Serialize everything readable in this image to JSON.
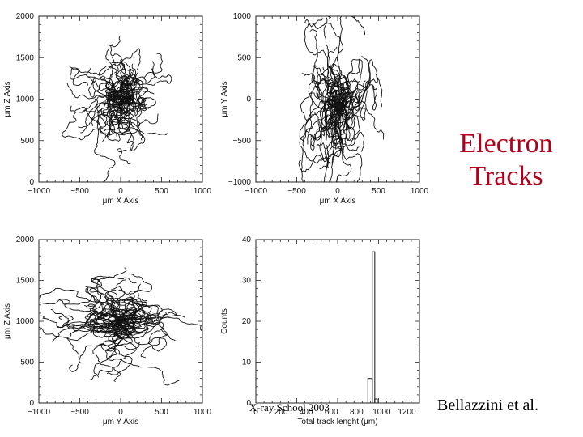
{
  "title": {
    "line1": "Electron",
    "line2": "Tracks"
  },
  "footer": {
    "left": "X-ray School 2003",
    "right": "Bellazzini et al."
  },
  "colors": {
    "title": "#b3001a",
    "ink": "#111111"
  },
  "chart_data": [
    {
      "type": "scatter",
      "name": "tracks-xz",
      "xlabel": "μm X Axis",
      "ylabel": "μm Z Axis",
      "xlim": [
        -1000,
        1000
      ],
      "ylim": [
        0,
        2000
      ],
      "xticks": [
        "−1000",
        "−500",
        "0",
        "500",
        "1000"
      ],
      "yticks": [
        "0",
        "500",
        "1000",
        "1500",
        "2000"
      ],
      "xtick_values": [
        -1000,
        -500,
        0,
        500,
        1000
      ],
      "ytick_values": [
        0,
        500,
        1000,
        1500,
        2000
      ],
      "cluster": {
        "cx": 0,
        "cy": 1000,
        "spread_x": 420,
        "spread_y": 420
      },
      "track_count": 60
    },
    {
      "type": "scatter",
      "name": "tracks-xy",
      "xlabel": "μm X Axis",
      "ylabel": "μm Y Axis",
      "xlim": [
        -1000,
        1000
      ],
      "ylim": [
        -1000,
        1000
      ],
      "xticks": [
        "−1000",
        "−500",
        "0",
        "500",
        "1000"
      ],
      "yticks": [
        "−1000",
        "−500",
        "0",
        "500",
        "1000"
      ],
      "xtick_values": [
        -1000,
        -500,
        0,
        500,
        1000
      ],
      "ytick_values": [
        -1000,
        -500,
        0,
        500,
        1000
      ],
      "cluster": {
        "cx": 0,
        "cy": -100,
        "spread_x": 380,
        "spread_y": 700
      },
      "track_count": 60
    },
    {
      "type": "scatter",
      "name": "tracks-yz",
      "xlabel": "μm Y Axis",
      "ylabel": "μm Z Axis",
      "xlim": [
        -1000,
        1000
      ],
      "ylim": [
        0,
        2000
      ],
      "xticks": [
        "−1000",
        "−500",
        "0",
        "500",
        "1000"
      ],
      "yticks": [
        "0",
        "500",
        "1000",
        "1500",
        "2000"
      ],
      "xtick_values": [
        -1000,
        -500,
        0,
        500,
        1000
      ],
      "ytick_values": [
        0,
        500,
        1000,
        1500,
        2000
      ],
      "cluster": {
        "cx": 0,
        "cy": 1000,
        "spread_x": 600,
        "spread_y": 380
      },
      "track_count": 60
    },
    {
      "type": "bar",
      "name": "track-length-histogram",
      "xlabel": "Total track lenght (μm)",
      "ylabel": "Counts",
      "xlim": [
        0,
        1300
      ],
      "ylim": [
        0,
        40
      ],
      "xticks": [
        "0",
        "200",
        "400",
        "600",
        "800",
        "1000",
        "1200"
      ],
      "yticks": [
        "0",
        "10",
        "20",
        "30",
        "40"
      ],
      "xtick_values": [
        0,
        200,
        400,
        600,
        800,
        1000,
        1200
      ],
      "ytick_values": [
        0,
        10,
        20,
        30,
        40
      ],
      "bins": [
        {
          "x0": 890,
          "x1": 925,
          "count": 6
        },
        {
          "x0": 925,
          "x1": 945,
          "count": 37
        },
        {
          "x0": 945,
          "x1": 965,
          "count": 1
        }
      ]
    }
  ]
}
